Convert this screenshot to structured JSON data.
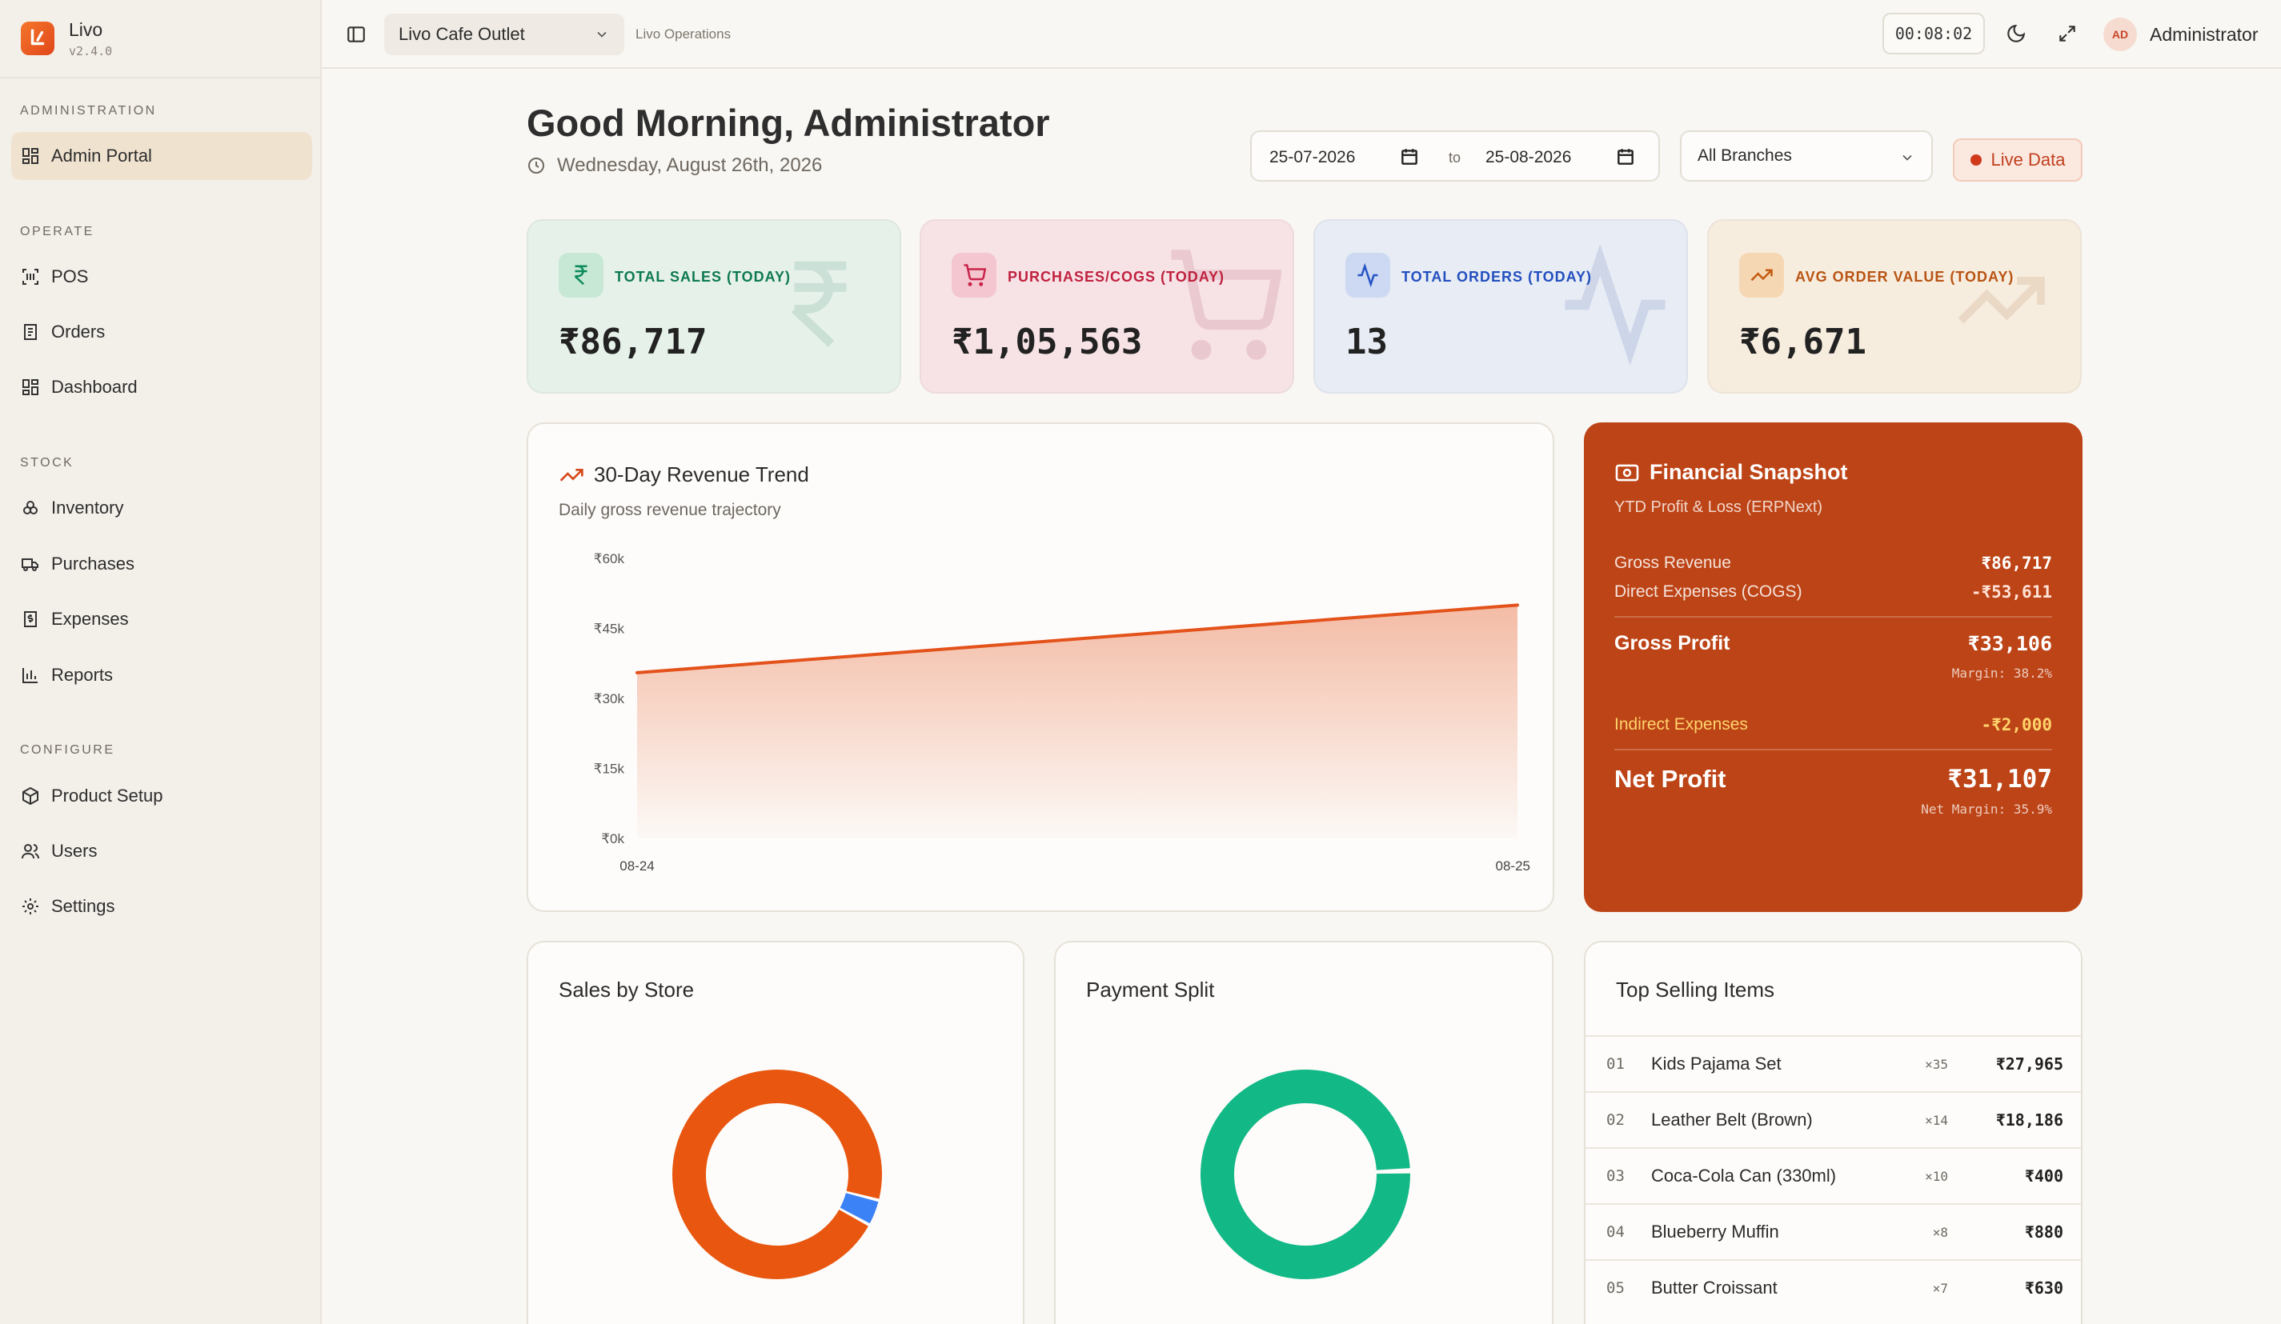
{
  "app": {
    "name": "Livo",
    "version": "v2.4.0"
  },
  "sidebar": {
    "sections": [
      {
        "title": "ADMINISTRATION",
        "items": [
          {
            "label": "Admin Portal",
            "icon": "grid-icon",
            "active": true
          }
        ]
      },
      {
        "title": "OPERATE",
        "items": [
          {
            "label": "POS",
            "icon": "scan-icon"
          },
          {
            "label": "Orders",
            "icon": "receipt-icon"
          },
          {
            "label": "Dashboard",
            "icon": "dashboard-icon"
          }
        ]
      },
      {
        "title": "STOCK",
        "items": [
          {
            "label": "Inventory",
            "icon": "boxes-icon"
          },
          {
            "label": "Purchases",
            "icon": "truck-icon"
          },
          {
            "label": "Expenses",
            "icon": "receipt-dollar-icon"
          },
          {
            "label": "Reports",
            "icon": "bar-chart-icon"
          }
        ]
      },
      {
        "title": "CONFIGURE",
        "items": [
          {
            "label": "Product Setup",
            "icon": "package-icon"
          },
          {
            "label": "Users",
            "icon": "users-icon"
          },
          {
            "label": "Settings",
            "icon": "gear-icon"
          }
        ]
      }
    ]
  },
  "header": {
    "outlet": "Livo Cafe Outlet",
    "subtitle": "Livo Operations",
    "clock": "00:08:02",
    "avatar_initials": "AD",
    "user": "Administrator"
  },
  "greeting": {
    "title": "Good Morning, Administrator",
    "date": "Wednesday, August 26th, 2026"
  },
  "filters": {
    "from": "25-07-2026",
    "to_label": "to",
    "to": "25-08-2026",
    "branch": "All Branches",
    "live_label": "Live Data"
  },
  "stats": [
    {
      "label": "TOTAL SALES (TODAY)",
      "value": "₹86,717",
      "icon": "rupee-icon",
      "color": "#0e8a5c"
    },
    {
      "label": "PURCHASES/COGS (TODAY)",
      "value": "₹1,05,563",
      "icon": "cart-icon",
      "color": "#c8234a"
    },
    {
      "label": "TOTAL ORDERS (TODAY)",
      "value": "13",
      "icon": "activity-icon",
      "color": "#2453c4"
    },
    {
      "label": "AVG ORDER VALUE (TODAY)",
      "value": "₹6,671",
      "icon": "trending-up-icon",
      "color": "#c35a10"
    }
  ],
  "revenue": {
    "title": "30-Day Revenue Trend",
    "subtitle": "Daily gross revenue trajectory"
  },
  "chart_data": {
    "type": "area",
    "x": [
      "08-24",
      "08-25"
    ],
    "values": [
      35500,
      50000
    ],
    "y_ticks": [
      "₹60k",
      "₹45k",
      "₹30k",
      "₹15k",
      "₹0k"
    ],
    "ylim": [
      0,
      60000
    ],
    "color": "#e4521b"
  },
  "financial": {
    "title": "Financial Snapshot",
    "subtitle": "YTD Profit & Loss (ERPNext)",
    "gross_revenue_label": "Gross Revenue",
    "gross_revenue": "₹86,717",
    "direct_label": "Direct Expenses (COGS)",
    "direct": "-₹53,611",
    "gross_profit_label": "Gross Profit",
    "gross_profit": "₹33,106",
    "margin": "Margin: 38.2%",
    "indirect_label": "Indirect Expenses",
    "indirect": "-₹2,000",
    "net_profit_label": "Net Profit",
    "net_profit": "₹31,107",
    "net_margin": "Net Margin: 35.9%"
  },
  "sales_by_store": {
    "title": "Sales by Store",
    "slices": [
      {
        "value": 96,
        "color": "#e8560f"
      },
      {
        "value": 4,
        "color": "#3b82f6"
      }
    ]
  },
  "payment_split": {
    "title": "Payment Split",
    "slices": [
      {
        "value": 100,
        "color": "#12b886"
      }
    ]
  },
  "top_items": {
    "title": "Top Selling Items",
    "rows": [
      {
        "idx": "01",
        "name": "Kids Pajama Set",
        "qty": "×35",
        "amount": "₹27,965"
      },
      {
        "idx": "02",
        "name": "Leather Belt (Brown)",
        "qty": "×14",
        "amount": "₹18,186"
      },
      {
        "idx": "03",
        "name": "Coca-Cola Can (330ml)",
        "qty": "×10",
        "amount": "₹400"
      },
      {
        "idx": "04",
        "name": "Blueberry Muffin",
        "qty": "×8",
        "amount": "₹880"
      },
      {
        "idx": "05",
        "name": "Butter Croissant",
        "qty": "×7",
        "amount": "₹630"
      }
    ]
  }
}
